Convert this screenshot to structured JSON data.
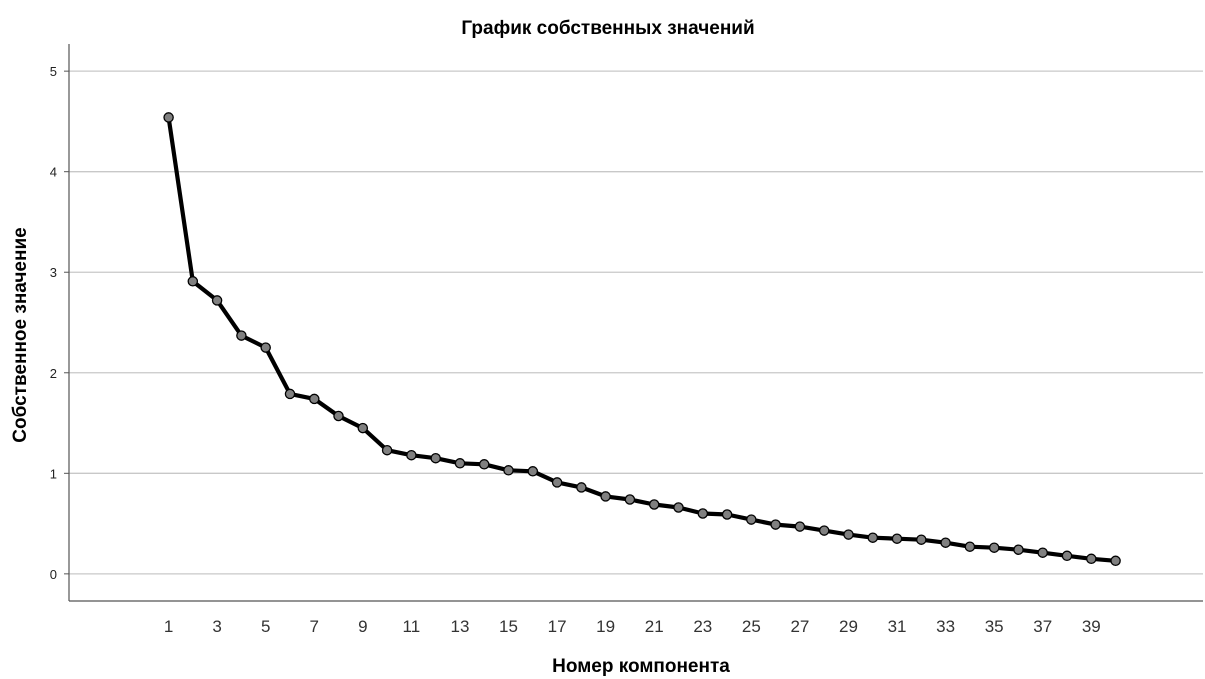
{
  "chart_data": {
    "type": "line",
    "title": "График собственных значений",
    "xlabel": "Номер компонента",
    "ylabel": "Собственное значение",
    "x": [
      1,
      2,
      3,
      4,
      5,
      6,
      7,
      8,
      9,
      10,
      11,
      12,
      13,
      14,
      15,
      16,
      17,
      18,
      19,
      20,
      21,
      22,
      23,
      24,
      25,
      26,
      27,
      28,
      29,
      30,
      31,
      32,
      33,
      34,
      35,
      36,
      37,
      38,
      39,
      40
    ],
    "xtick_labels": [
      "1",
      "3",
      "5",
      "7",
      "9",
      "11",
      "13",
      "15",
      "17",
      "19",
      "21",
      "23",
      "25",
      "27",
      "29",
      "31",
      "33",
      "35",
      "37",
      "39"
    ],
    "yticks": [
      0,
      1,
      2,
      3,
      4,
      5
    ],
    "ylim": [
      -0.27,
      5.27
    ],
    "xlim": [
      -3.1,
      43.6
    ],
    "grid": true,
    "series": [
      {
        "values": [
          4.54,
          2.91,
          2.72,
          2.37,
          2.25,
          1.79,
          1.74,
          1.57,
          1.45,
          1.23,
          1.18,
          1.15,
          1.1,
          1.09,
          1.03,
          1.02,
          0.91,
          0.86,
          0.77,
          0.74,
          0.69,
          0.66,
          0.6,
          0.59,
          0.54,
          0.49,
          0.47,
          0.43,
          0.39,
          0.36,
          0.35,
          0.34,
          0.31,
          0.27,
          0.26,
          0.24,
          0.21,
          0.18,
          0.15,
          0.13
        ],
        "line_color": "#000000",
        "marker_color": "#808080"
      }
    ],
    "grid_color": "#c8c8c8",
    "axis_color": "#555555"
  }
}
